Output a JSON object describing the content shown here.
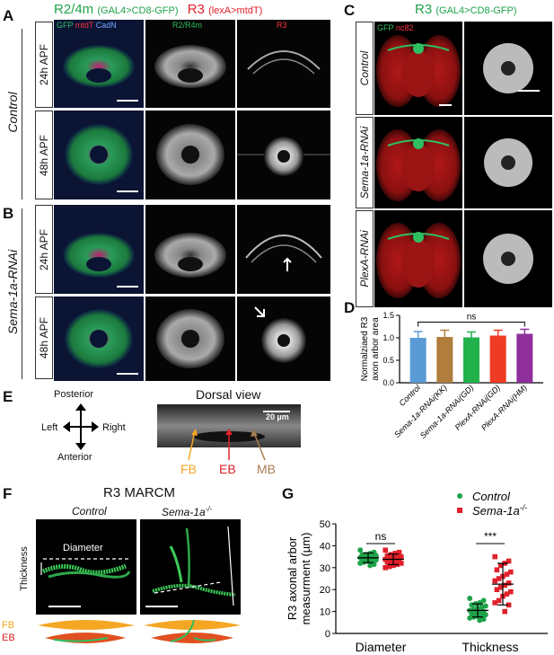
{
  "panels": {
    "A": "A",
    "B": "B",
    "C": "C",
    "D": "D",
    "E": "E",
    "F": "F",
    "G": "G"
  },
  "header_ab": {
    "title_green": "R2/4m",
    "title_green_sub": "(GAL4>CD8-GFP)",
    "title_red": "R3",
    "title_red_sub": "(lexA>mtdT)"
  },
  "col_labels": {
    "gfp": "GFP",
    "mtdt": "mtdT",
    "cadn": "CadN",
    "r2r4m": "R2/R4m",
    "r3": "R3"
  },
  "row_labels": {
    "h24": "24h APF",
    "h48": "48h APF"
  },
  "group_labels": {
    "control": "Control",
    "sema": "Sema-1a-RNAi"
  },
  "header_c": {
    "title": "R3",
    "title_sub": "(GAL4>CD8-GFP)",
    "gfp": "GFP",
    "nc82": "nc82"
  },
  "c_rows": [
    "Control",
    "Sema-1a-RNAi",
    "PlexA-RNAi"
  ],
  "panel_e": {
    "title": "Dorsal view",
    "posterior": "Posterior",
    "anterior": "Anterior",
    "left": "Left",
    "right": "Right",
    "scale": "20 µm",
    "fb": "FB",
    "eb": "EB",
    "mb": "MB"
  },
  "panel_f": {
    "title": "R3 MARCM",
    "control": "Control",
    "sema": "Sema-1a",
    "sema_sup": "-/-",
    "diameter": "Diameter",
    "thickness": "Thickness",
    "fb": "FB",
    "eb": "EB"
  },
  "colors": {
    "gfp": "#1fa34a",
    "red": "#e0202a",
    "orange": "#f5a623",
    "blue_cadn": "#5b8fd6",
    "brown": "#a67c52"
  },
  "chart_data": [
    {
      "panel": "D",
      "type": "bar",
      "ylabel": "Normalziaed R3 axon arbor area",
      "categories": [
        "Control",
        "Sema-1a-RNAi(KK)",
        "Sema-1a-RNAi(GD)",
        "PlexA-RNAi(GD)",
        "PlexA-RNAi(HM)"
      ],
      "values": [
        1.0,
        1.02,
        1.01,
        1.05,
        1.09
      ],
      "errors": [
        0.14,
        0.15,
        0.12,
        0.12,
        0.1
      ],
      "colors": [
        "#5b9bd5",
        "#b07d3c",
        "#22b24c",
        "#ef3b24",
        "#8e2f9c"
      ],
      "ylim": [
        0,
        1.5
      ],
      "yticks": [
        "0.0",
        "0.5",
        "1.0",
        "1.5"
      ],
      "annotation": "ns"
    },
    {
      "panel": "G",
      "type": "scatter",
      "ylabel": "R3 axonal arbor measurment (µm)",
      "categories": [
        "Diameter",
        "Thickness"
      ],
      "ylim": [
        0,
        50
      ],
      "yticks": [
        "0",
        "10",
        "20",
        "30",
        "40",
        "50"
      ],
      "legend": [
        "Control",
        "Sema-1a-/-"
      ],
      "annotations": [
        "ns",
        "***"
      ],
      "series": [
        {
          "name": "Control",
          "color": "#1fa34a",
          "marker": "circle",
          "groups": [
            {
              "category": "Diameter",
              "mean": 34.5,
              "sd": 2.2,
              "values": [
                38,
                37,
                36.5,
                36,
                35.8,
                35.5,
                35.2,
                35,
                34.8,
                34.6,
                34.5,
                34.2,
                34,
                33.8,
                33.5,
                33.2,
                33,
                32.5,
                32,
                31.5,
                31
              ]
            },
            {
              "category": "Thickness",
              "mean": 10.5,
              "sd": 3.0,
              "values": [
                16,
                15,
                14,
                13.5,
                13,
                12.5,
                12,
                11.5,
                11,
                10.5,
                10,
                9.8,
                9.5,
                9,
                8.5,
                8,
                7.8,
                7.5,
                7,
                6.5,
                6
              ]
            }
          ]
        },
        {
          "name": "Sema-1a-/-",
          "color": "#e0202a",
          "marker": "square",
          "groups": [
            {
              "category": "Diameter",
              "mean": 33.8,
              "sd": 2.4,
              "values": [
                38,
                37,
                36.5,
                36,
                35.5,
                35,
                34.8,
                34.5,
                34,
                33.8,
                33.5,
                33,
                32.8,
                32.5,
                32,
                31.5,
                31,
                30.5,
                30
              ]
            },
            {
              "category": "Thickness",
              "mean": 22.5,
              "sd": 9.5,
              "values": [
                35,
                33,
                32,
                31,
                29,
                28,
                27,
                26,
                25,
                24,
                23,
                22,
                21,
                20,
                19,
                18,
                17,
                15,
                14,
                13,
                10
              ]
            }
          ]
        }
      ]
    }
  ]
}
